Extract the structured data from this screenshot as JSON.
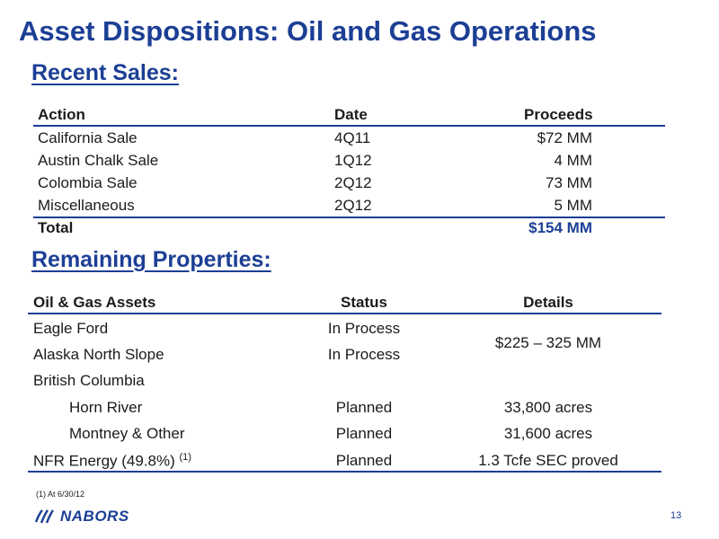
{
  "title": "Asset Dispositions: Oil and Gas Operations",
  "recent_sales": {
    "heading": "Recent Sales:",
    "headers": {
      "action": "Action",
      "date": "Date",
      "proceeds": "Proceeds"
    },
    "rows": [
      {
        "action": "California Sale",
        "date": "4Q11",
        "proceeds": "$72 MM"
      },
      {
        "action": "Austin Chalk Sale",
        "date": "1Q12",
        "proceeds": "4 MM"
      },
      {
        "action": "Colombia Sale",
        "date": "2Q12",
        "proceeds": "73 MM"
      },
      {
        "action": "Miscellaneous",
        "date": "2Q12",
        "proceeds": "5 MM"
      }
    ],
    "total": {
      "label": "Total",
      "proceeds": "$154 MM"
    }
  },
  "remaining": {
    "heading": "Remaining Properties:",
    "headers": {
      "asset": "Oil & Gas Assets",
      "status": "Status",
      "details": "Details"
    },
    "rows": [
      {
        "asset": "Eagle Ford",
        "status": "In Process"
      },
      {
        "asset": "Alaska North Slope",
        "status": "In Process"
      },
      {
        "asset": "British Columbia"
      },
      {
        "asset": "Horn River",
        "status": "Planned",
        "details": "33,800 acres"
      },
      {
        "asset": "Montney & Other",
        "status": "Planned",
        "details": "31,600 acres"
      },
      {
        "asset": "NFR Energy (49.8%)",
        "asset_note": "(1)",
        "status": "Planned",
        "details": "1.3 Tcfe SEC proved"
      }
    ],
    "merged_details": "$225 – 325 MM"
  },
  "footnote": "(1)   At 6/30/12",
  "logo": {
    "text": "NABORS"
  },
  "page_number": "13",
  "colors": {
    "brand_blue": "#1c3f95",
    "text": "#1b1b1b"
  }
}
